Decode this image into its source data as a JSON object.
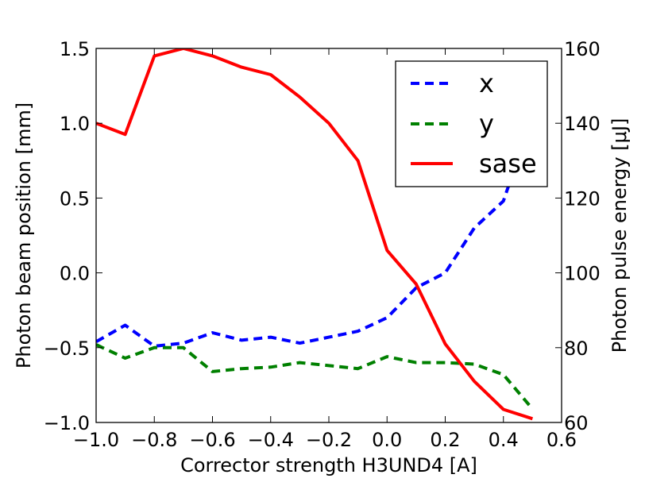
{
  "chart_data": {
    "type": "line",
    "xlabel": "Corrector strength H3UND4 [A]",
    "ylabel": "Photon beam position [mm]",
    "ylabel_right": "Photon pulse energy [μJ]",
    "xlim": [
      -1.0,
      0.6
    ],
    "ylim": [
      -1.0,
      1.5
    ],
    "ylim_right": [
      60,
      160
    ],
    "x_ticks": [
      "−1.0",
      "−0.8",
      "−0.6",
      "−0.4",
      "−0.2",
      "0.0",
      "0.2",
      "0.4",
      "0.6"
    ],
    "y_ticks": [
      "−1.0",
      "−0.5",
      "0.0",
      "0.5",
      "1.0",
      "1.5"
    ],
    "y_right_ticks": [
      "60",
      "80",
      "100",
      "120",
      "140",
      "160"
    ],
    "grid": false,
    "legend_position": "top-right",
    "series": [
      {
        "name": "x",
        "axis": "left",
        "style": "dashed",
        "color": "#0000ff",
        "x": [
          -1.0,
          -0.9,
          -0.8,
          -0.7,
          -0.6,
          -0.5,
          -0.4,
          -0.3,
          -0.2,
          -0.1,
          0.0,
          0.1,
          0.2,
          0.3,
          0.4,
          0.5
        ],
        "y": [
          -0.46,
          -0.35,
          -0.49,
          -0.47,
          -0.4,
          -0.45,
          -0.43,
          -0.47,
          -0.43,
          -0.39,
          -0.3,
          -0.1,
          0.0,
          0.3,
          0.48,
          1.05
        ]
      },
      {
        "name": "y",
        "axis": "left",
        "style": "dashed",
        "color": "#008000",
        "x": [
          -1.0,
          -0.9,
          -0.8,
          -0.7,
          -0.6,
          -0.5,
          -0.4,
          -0.3,
          -0.2,
          -0.1,
          0.0,
          0.1,
          0.2,
          0.3,
          0.4,
          0.5
        ],
        "y": [
          -0.48,
          -0.57,
          -0.5,
          -0.5,
          -0.66,
          -0.64,
          -0.63,
          -0.6,
          -0.62,
          -0.64,
          -0.56,
          -0.6,
          -0.6,
          -0.61,
          -0.68,
          -0.91
        ]
      },
      {
        "name": "sase",
        "axis": "right",
        "style": "solid",
        "color": "#ff0000",
        "x": [
          -1.0,
          -0.9,
          -0.8,
          -0.7,
          -0.6,
          -0.5,
          -0.4,
          -0.3,
          -0.2,
          -0.1,
          0.0,
          0.1,
          0.2,
          0.3,
          0.4,
          0.5
        ],
        "y": [
          140,
          137,
          158,
          160,
          158,
          155,
          153,
          147,
          140,
          130,
          106,
          97,
          81,
          71,
          63.5,
          61
        ]
      }
    ]
  }
}
